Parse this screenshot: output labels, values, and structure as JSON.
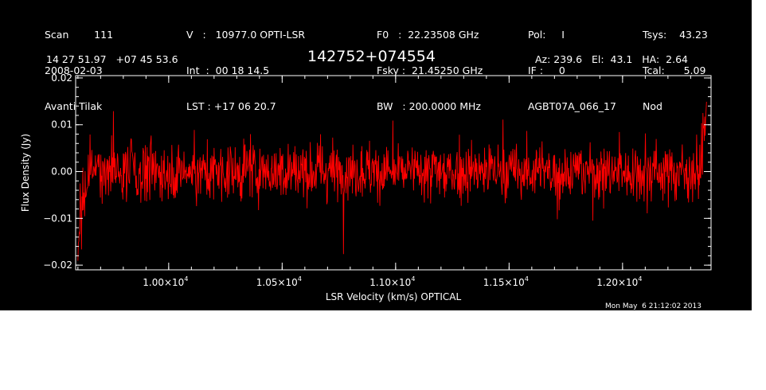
{
  "header": {
    "col1": [
      "Scan        111",
      "2008-02-03",
      "Avanti Tilak"
    ],
    "col2": [
      "V   :   10977.0 OPTI-LSR",
      "Int  :  00 18 14.5",
      "LST : +17 06 20.7"
    ],
    "col3": [
      "F0   :  22.23508 GHz",
      "Fsky :  21.45250 GHz",
      "BW   : 200.0000 MHz"
    ],
    "col4": [
      "Pol:     I",
      "IF :     0",
      "AGBT07A_066_17"
    ],
    "col5": [
      "Tsys:    43.23",
      "Tcal:      5.09",
      "Nod"
    ],
    "coords": "14 27 51.97   +07 45 53.6",
    "source": "142752+074554",
    "pointing": "Az: 239.6   El:  43.1   HA:  2.64",
    "timestamp": "Mon May  6 21:12:02 2013"
  },
  "colors": {
    "background": "#000000",
    "axes": "#ffffff",
    "trace": "#ff0000"
  },
  "chart_data": {
    "type": "line",
    "title": "142752+074554",
    "xlabel": "LSR Velocity (km/s) OPTICAL",
    "ylabel": "Flux Density (Jy)",
    "xlim": [
      9590,
      12390
    ],
    "ylim": [
      -0.021,
      0.0205
    ],
    "xticks": [
      {
        "value": 10000,
        "mantissa": "1.00",
        "exponent": "4"
      },
      {
        "value": 10500,
        "mantissa": "1.05",
        "exponent": "4"
      },
      {
        "value": 11000,
        "mantissa": "1.10",
        "exponent": "4"
      },
      {
        "value": 11500,
        "mantissa": "1.15",
        "exponent": "4"
      },
      {
        "value": 12000,
        "mantissa": "1.20",
        "exponent": "4"
      }
    ],
    "yticks": [
      {
        "value": -0.02,
        "label": "−0.02"
      },
      {
        "value": -0.01,
        "label": "−0.01"
      },
      {
        "value": 0.0,
        "label": "0.00"
      },
      {
        "value": 0.01,
        "label": "0.01"
      },
      {
        "value": 0.02,
        "label": "0.02"
      }
    ],
    "grid": false,
    "series": [
      {
        "color": "#ff0000",
        "x_start": 9600,
        "x_end": 12370,
        "points": 1400,
        "baseline_y": 0.0,
        "noise_rms_jy": 0.004,
        "edge_features": [
          {
            "x": 9610,
            "y": -0.0165
          },
          {
            "x": 12365,
            "y": 0.018
          }
        ]
      }
    ]
  }
}
